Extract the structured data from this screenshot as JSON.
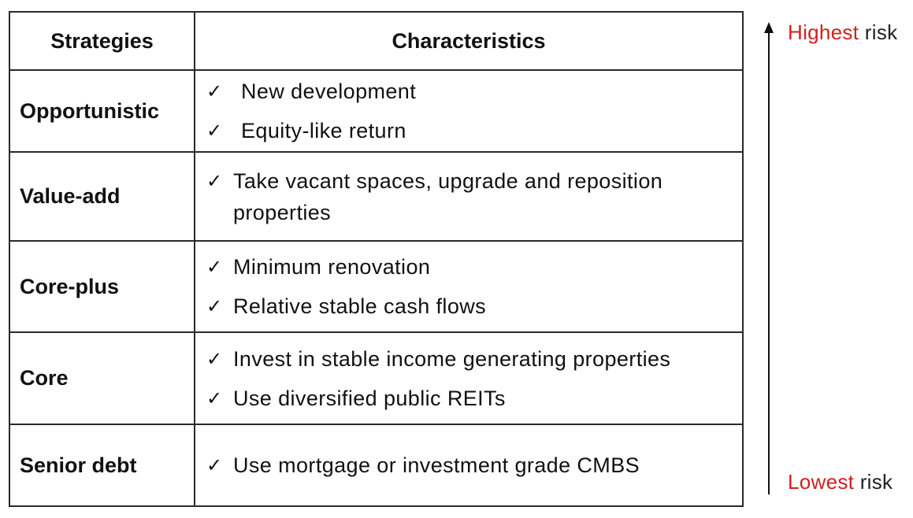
{
  "table": {
    "headers": {
      "strategies": "Strategies",
      "characteristics": "Characteristics"
    },
    "rows": [
      {
        "strategy": "Opportunistic",
        "items": [
          "New development",
          "Equity-like return"
        ]
      },
      {
        "strategy": "Value-add",
        "items": [
          "Take vacant spaces, upgrade and reposition properties"
        ]
      },
      {
        "strategy": "Core-plus",
        "items": [
          "Minimum renovation",
          "Relative stable cash flows"
        ]
      },
      {
        "strategy": "Core",
        "items": [
          "Invest in stable income generating properties",
          "Use diversified public REITs"
        ]
      },
      {
        "strategy": "Senior debt",
        "items": [
          "Use mortgage or investment grade CMBS"
        ]
      }
    ],
    "check_glyph": "✓"
  },
  "risk_axis": {
    "top_label_accent": "Highest",
    "top_label_rest": " risk",
    "bottom_label_accent": "Lowest",
    "bottom_label_rest": " risk",
    "accent_color": "#d0201f",
    "arrow_icon": "arrow-up-icon"
  }
}
